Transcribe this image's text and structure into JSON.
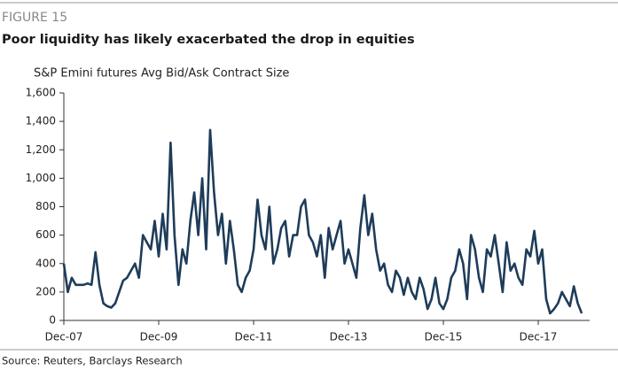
{
  "figure_label": "FIGURE 15",
  "chart_data": {
    "type": "line",
    "title": "Poor liquidity has likely exacerbated the drop in equities",
    "subtitle": "S&P Emini futures Avg Bid/Ask Contract Size",
    "source": "Source: Reuters, Barclays Research",
    "x": [
      "2007-12",
      "2008-01",
      "2008-02",
      "2008-03",
      "2008-04",
      "2008-05",
      "2008-06",
      "2008-07",
      "2008-08",
      "2008-09",
      "2008-10",
      "2008-11",
      "2008-12",
      "2009-01",
      "2009-02",
      "2009-03",
      "2009-04",
      "2009-05",
      "2009-06",
      "2009-07",
      "2009-08",
      "2009-09",
      "2009-10",
      "2009-11",
      "2009-12",
      "2010-01",
      "2010-02",
      "2010-03",
      "2010-04",
      "2010-05",
      "2010-06",
      "2010-07",
      "2010-08",
      "2010-09",
      "2010-10",
      "2010-11",
      "2010-12",
      "2011-01",
      "2011-02",
      "2011-03",
      "2011-04",
      "2011-05",
      "2011-06",
      "2011-07",
      "2011-08",
      "2011-09",
      "2011-10",
      "2011-11",
      "2011-12",
      "2012-01",
      "2012-02",
      "2012-03",
      "2012-04",
      "2012-05",
      "2012-06",
      "2012-07",
      "2012-08",
      "2012-09",
      "2012-10",
      "2012-11",
      "2012-12",
      "2013-01",
      "2013-02",
      "2013-03",
      "2013-04",
      "2013-05",
      "2013-06",
      "2013-07",
      "2013-08",
      "2013-09",
      "2013-10",
      "2013-11",
      "2013-12",
      "2014-01",
      "2014-02",
      "2014-03",
      "2014-04",
      "2014-05",
      "2014-06",
      "2014-07",
      "2014-08",
      "2014-09",
      "2014-10",
      "2014-11",
      "2014-12",
      "2015-01",
      "2015-02",
      "2015-03",
      "2015-04",
      "2015-05",
      "2015-06",
      "2015-07",
      "2015-08",
      "2015-09",
      "2015-10",
      "2015-11",
      "2015-12",
      "2016-01",
      "2016-02",
      "2016-03",
      "2016-04",
      "2016-05",
      "2016-06",
      "2016-07",
      "2016-08",
      "2016-09",
      "2016-10",
      "2016-11",
      "2016-12",
      "2017-01",
      "2017-02",
      "2017-03",
      "2017-04",
      "2017-05",
      "2017-06",
      "2017-07",
      "2017-08",
      "2017-09",
      "2017-10",
      "2017-11",
      "2017-12",
      "2018-01",
      "2018-02",
      "2018-03",
      "2018-04",
      "2018-05",
      "2018-06",
      "2018-07",
      "2018-08",
      "2018-09",
      "2018-10",
      "2018-11"
    ],
    "values": [
      400,
      200,
      300,
      250,
      250,
      250,
      260,
      250,
      480,
      250,
      120,
      100,
      90,
      120,
      200,
      280,
      300,
      350,
      400,
      300,
      600,
      550,
      500,
      700,
      450,
      750,
      500,
      1250,
      600,
      250,
      500,
      400,
      700,
      900,
      600,
      1000,
      500,
      1340,
      900,
      600,
      750,
      400,
      700,
      500,
      250,
      200,
      300,
      350,
      500,
      850,
      600,
      500,
      800,
      400,
      500,
      650,
      700,
      450,
      600,
      600,
      800,
      850,
      600,
      550,
      450,
      600,
      300,
      650,
      500,
      600,
      700,
      400,
      500,
      400,
      300,
      650,
      880,
      600,
      750,
      500,
      350,
      400,
      250,
      200,
      350,
      300,
      180,
      300,
      200,
      150,
      300,
      220,
      80,
      150,
      300,
      120,
      80,
      150,
      300,
      350,
      500,
      400,
      150,
      600,
      500,
      300,
      200,
      500,
      450,
      600,
      400,
      200,
      550,
      350,
      400,
      300,
      250,
      500,
      450,
      630,
      400,
      500,
      150,
      50,
      80,
      120,
      200,
      150,
      100,
      240,
      120,
      50
    ],
    "color": "#1e3c5a",
    "xlim": [
      "2007-12",
      "2019-01"
    ],
    "xticks": [
      {
        "value": "2007-12",
        "label": "Dec-07"
      },
      {
        "value": "2009-12",
        "label": "Dec-09"
      },
      {
        "value": "2011-12",
        "label": "Dec-11"
      },
      {
        "value": "2013-12",
        "label": "Dec-13"
      },
      {
        "value": "2015-12",
        "label": "Dec-15"
      },
      {
        "value": "2017-12",
        "label": "Dec-17"
      }
    ],
    "ylim": [
      0,
      1600
    ],
    "yticks": [
      0,
      200,
      400,
      600,
      800,
      {
        "value": 1000,
        "label": "1,000"
      },
      {
        "value": 1200,
        "label": "1,200"
      },
      {
        "value": 1400,
        "label": "1,400"
      },
      {
        "value": 1600,
        "label": "1,600"
      }
    ]
  }
}
